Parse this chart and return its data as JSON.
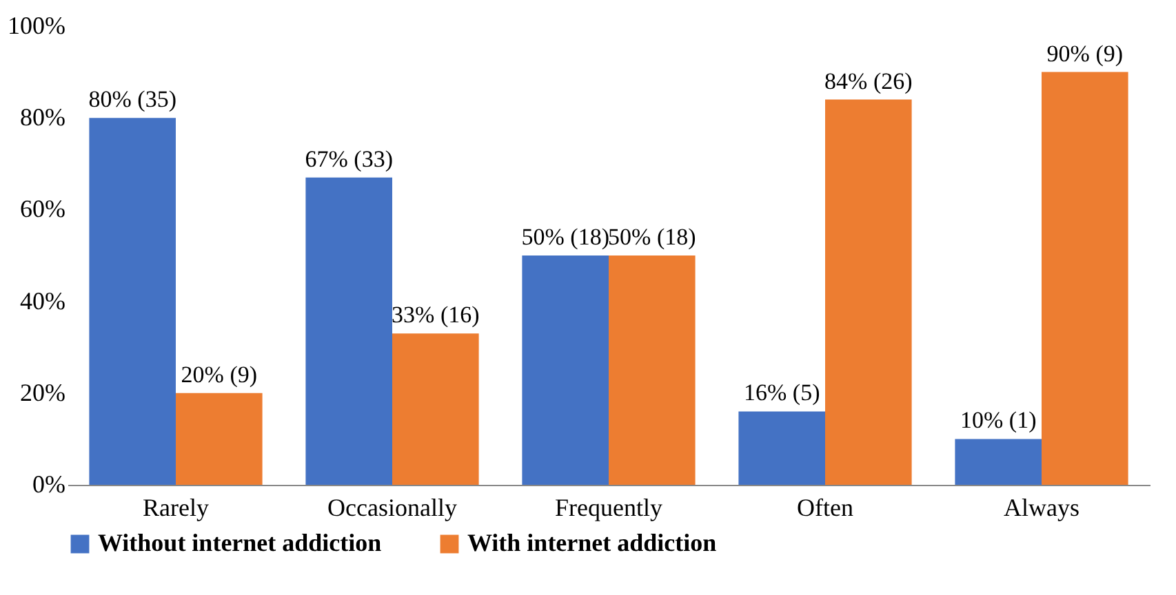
{
  "chart_data": {
    "type": "bar",
    "categories": [
      "Rarely",
      "Occasionally",
      "Frequently",
      "Often",
      "Always"
    ],
    "series": [
      {
        "name": "Without internet addiction",
        "color": "#4472c4",
        "values": [
          80,
          67,
          50,
          16,
          10
        ],
        "value_labels": [
          "80% (35)",
          "67% (33)",
          "50% (18)",
          "16% (5)",
          "10% (1)"
        ]
      },
      {
        "name": "With internet addiction",
        "color": "#ed7d31",
        "values": [
          20,
          33,
          50,
          84,
          90
        ],
        "value_labels": [
          "20% (9)",
          "33% (16)",
          "50% (18)",
          "84% (26)",
          "90% (9)"
        ]
      }
    ],
    "ylim": [
      0,
      100
    ],
    "yticks": [
      {
        "value": 0,
        "label": "0%"
      },
      {
        "value": 20,
        "label": "20%"
      },
      {
        "value": 40,
        "label": "40%"
      },
      {
        "value": 60,
        "label": "60%"
      },
      {
        "value": 80,
        "label": "80%"
      },
      {
        "value": 100,
        "label": "100%"
      }
    ],
    "grid": false,
    "legend": "bottom"
  }
}
